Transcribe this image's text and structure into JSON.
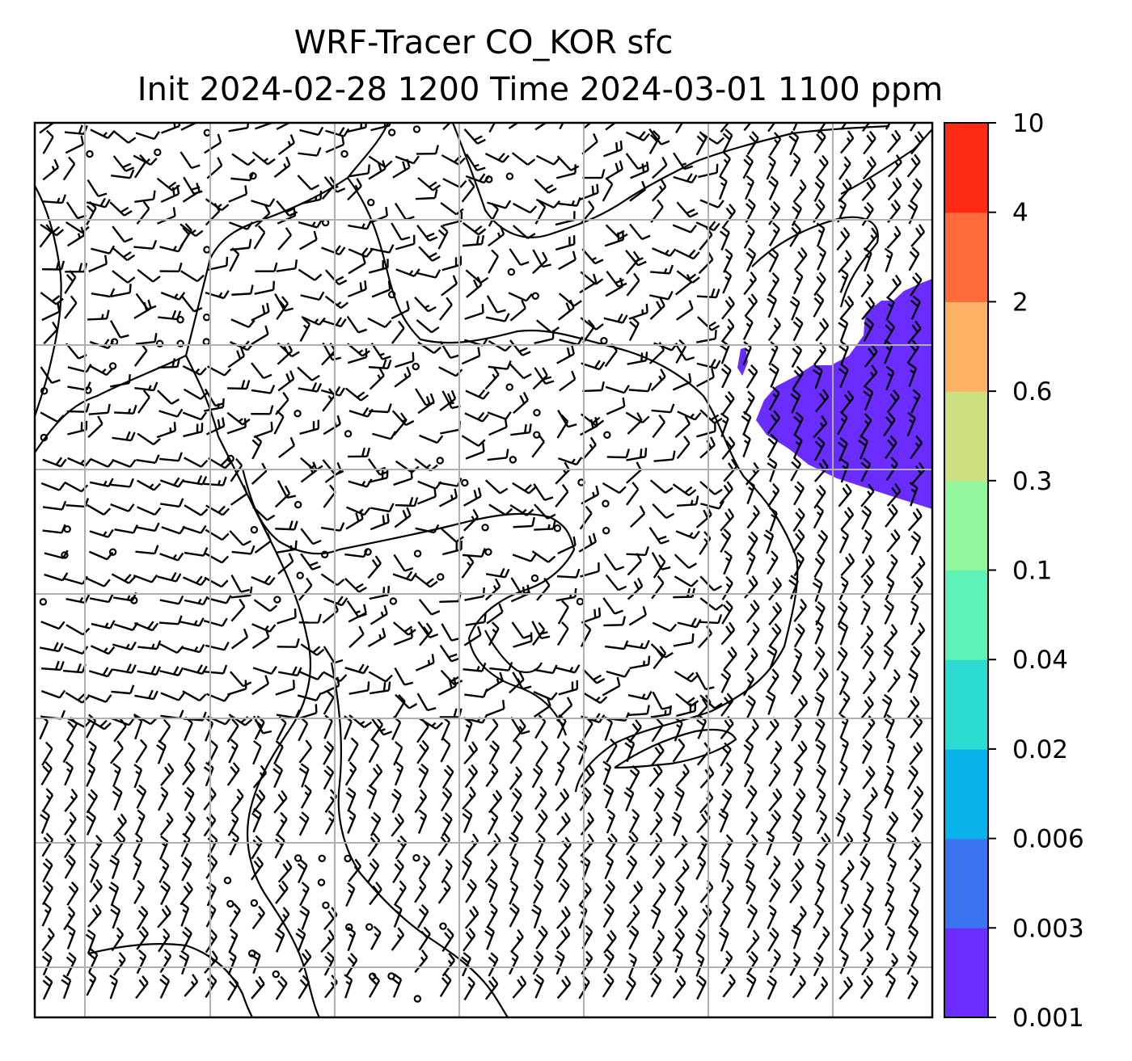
{
  "chart_data": {
    "type": "map",
    "title_lines": [
      "WRF-Tracer CO_KOR sfc",
      "Init 2024-02-28 1200 Time 2024-03-01 1100 ppm"
    ],
    "colorbar": {
      "levels": [
        "0.001",
        "0.003",
        "0.006",
        "0.02",
        "0.04",
        "0.1",
        "0.3",
        "0.6",
        "2",
        "4",
        "10"
      ],
      "colors": [
        "#6a2cff",
        "#3b74f0",
        "#08b2ea",
        "#2ddcd0",
        "#5ef2b8",
        "#92f79c",
        "#cde07f",
        "#fdb164",
        "#ff6c3c",
        "#ff2a13"
      ]
    },
    "filled_regions": [
      {
        "level_index": 0,
        "color": "#6a2cff"
      }
    ],
    "grid": true,
    "legend": "right colorbar"
  }
}
